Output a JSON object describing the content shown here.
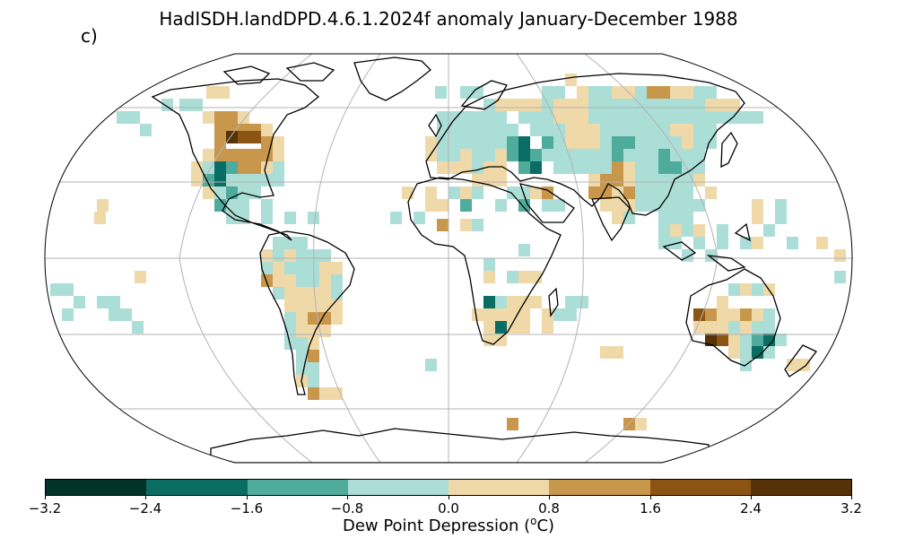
{
  "title": "HadISDH.landDPD.4.6.1.2024f anomaly January-December 1988",
  "panel_label": "c)",
  "colorbar": {
    "label_prefix": "Dew Point Depression (",
    "label_sup": "o",
    "label_suffix": "C)",
    "ticks": [
      "−3.2",
      "−2.4",
      "−1.6",
      "−0.8",
      "0.0",
      "0.8",
      "1.6",
      "2.4",
      "3.2"
    ],
    "colors": [
      "#01332b",
      "#0a6d63",
      "#4fab9c",
      "#abded6",
      "#efd9a9",
      "#c8974b",
      "#8c5412",
      "#553207"
    ]
  },
  "map_data": {
    "projection": "Robinson",
    "variable": "dew point depression anomaly",
    "units": "degC",
    "period": "January-December 1988",
    "classes": [
      "-3.2 to -2.4",
      "-2.4 to -1.6",
      "-1.6 to -0.8",
      "-0.8 to 0.0",
      "0.0 to 0.8",
      "0.8 to 1.6",
      "1.6 to 2.4",
      "2.4 to 3.2"
    ]
  }
}
